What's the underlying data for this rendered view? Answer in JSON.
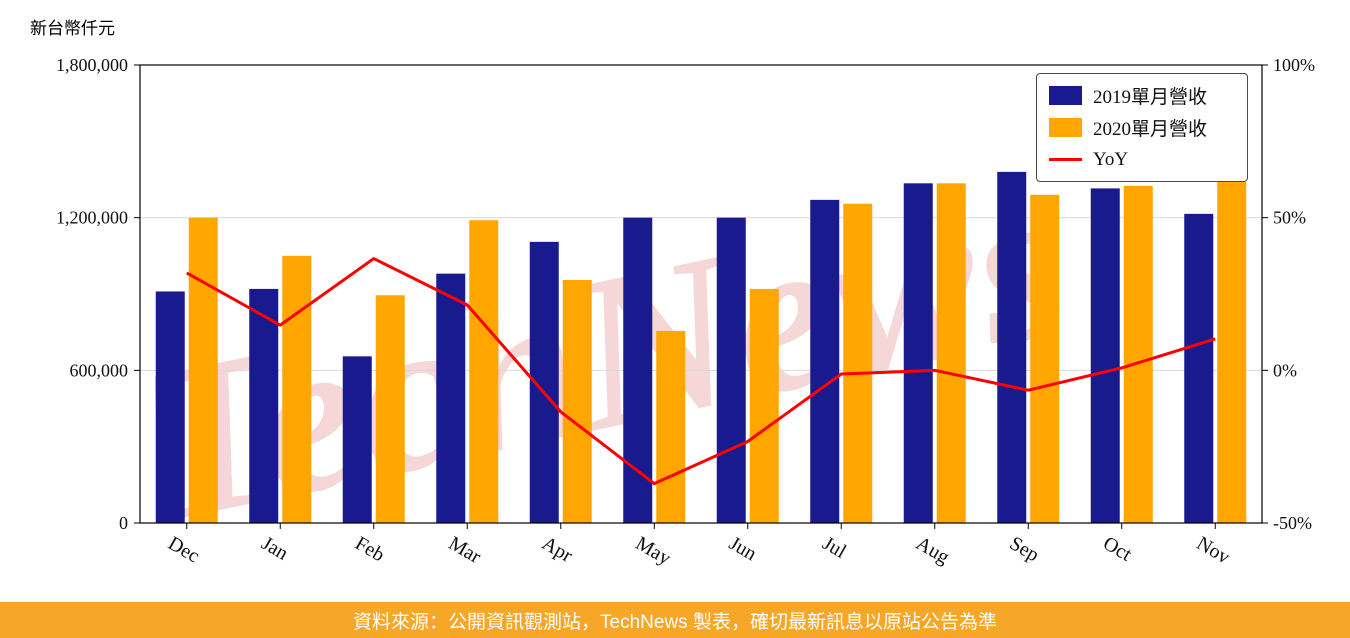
{
  "page": {
    "watermark": "TechNews",
    "footer": "資料來源：公開資訊觀測站，TechNews 製表，確切最新訊息以原站公告為準"
  },
  "colors": {
    "bar_2019": "#1a1a8f",
    "bar_2020": "#ffa600",
    "yoy_line": "#ff0000",
    "footer_bg": "#f7a728",
    "watermark": "#e8a0a0",
    "grid": "#d9d9d9",
    "axis": "#000000"
  },
  "chart_data": {
    "type": "bar",
    "title": "",
    "ylabel": "新台幣仟元",
    "categories": [
      "Dec",
      "Jan",
      "Feb",
      "Mar",
      "Apr",
      "May",
      "Jun",
      "Jul",
      "Aug",
      "Sep",
      "Oct",
      "Nov"
    ],
    "series": [
      {
        "key": "2019",
        "name": "2019單月營收",
        "type": "bar",
        "axis": "left",
        "color": "#1a1a8f",
        "values": [
          910000,
          920000,
          655000,
          980000,
          1105000,
          1200000,
          1200000,
          1270000,
          1335000,
          1380000,
          1315000,
          1215000
        ]
      },
      {
        "key": "2020",
        "name": "2020單月營收",
        "type": "bar",
        "axis": "left",
        "color": "#ffa600",
        "values": [
          1200000,
          1050000,
          895000,
          1190000,
          955000,
          755000,
          920000,
          1255000,
          1335000,
          1290000,
          1325000,
          1340000
        ]
      },
      {
        "key": "yoy",
        "name": "YoY",
        "type": "line",
        "axis": "right",
        "color": "#ff0000",
        "values": [
          31.9,
          14.8,
          36.6,
          21.4,
          -13.6,
          -37.1,
          -23.3,
          -1.2,
          0.0,
          -6.5,
          0.8,
          10.3
        ]
      }
    ],
    "left_axis": {
      "min": 0,
      "max": 1800000,
      "ticks": [
        0,
        600000,
        1200000,
        1800000
      ],
      "tick_labels": [
        "0",
        "600,000",
        "1,200,000",
        "1,800,000"
      ]
    },
    "right_axis": {
      "min": -50,
      "max": 100,
      "ticks": [
        -50,
        0,
        50,
        100
      ],
      "tick_labels": [
        "-50%",
        "0%",
        "50%",
        "100%"
      ],
      "unit": "%"
    },
    "grid": "horizontal",
    "legend_position": "upper right",
    "legend": [
      "2019單月營收",
      "2020單月營收",
      "YoY"
    ]
  }
}
